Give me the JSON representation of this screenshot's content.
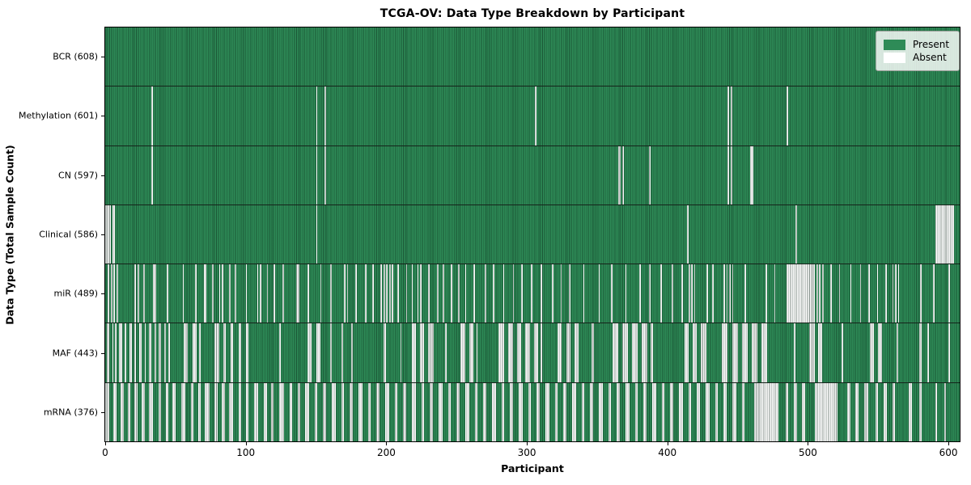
{
  "title": "TCGA-OV: Data Type Breakdown by Participant",
  "legend": {
    "present_label": "Present",
    "absent_label": "Absent"
  },
  "colors": {
    "present": "#2e8b57",
    "absent": "#fcfcfc",
    "bar_edge": "#15231a",
    "legend_bg": "rgba(255,255,255,0.82)"
  },
  "chart_data": {
    "type": "heatmap",
    "title": "TCGA-OV: Data Type Breakdown by Participant",
    "xlabel": "Participant",
    "ylabel": "Data Type (Total Sample Count)",
    "x_ticks": [
      0,
      100,
      200,
      300,
      400,
      500,
      600
    ],
    "n_participants": 608,
    "grid": false,
    "legend_position": "upper right",
    "legend_entries": [
      {
        "label": "Present",
        "color": "#2e8b57"
      },
      {
        "label": "Absent",
        "color": "#ffffff"
      }
    ],
    "rows": [
      {
        "name": "BCR",
        "label": "BCR (608)",
        "present_count": 608,
        "absent_count": 0,
        "absent_ranges": []
      },
      {
        "name": "Methylation",
        "label": "Methylation (601)",
        "present_count": 601,
        "absent_count": 7,
        "absent_ranges": [
          [
            33,
            33
          ],
          [
            150,
            150
          ],
          [
            156,
            156
          ],
          [
            306,
            306
          ],
          [
            443,
            443
          ],
          [
            445,
            445
          ],
          [
            485,
            485
          ]
        ]
      },
      {
        "name": "CN",
        "label": "CN (597)",
        "present_count": 597,
        "absent_count": 11,
        "absent_ranges": [
          [
            33,
            33
          ],
          [
            150,
            150
          ],
          [
            156,
            156
          ],
          [
            365,
            366
          ],
          [
            368,
            368
          ],
          [
            387,
            387
          ],
          [
            443,
            443
          ],
          [
            445,
            445
          ],
          [
            459,
            460
          ]
        ]
      },
      {
        "name": "Clinical",
        "label": "Clinical (586)",
        "present_count": 586,
        "absent_count": 22,
        "absent_ranges": [
          [
            0,
            3
          ],
          [
            5,
            6
          ],
          [
            150,
            150
          ],
          [
            414,
            414
          ],
          [
            491,
            491
          ],
          [
            591,
            603
          ]
        ]
      },
      {
        "name": "miR",
        "label": "miR (489)",
        "present_count": 489,
        "absent_count": 119,
        "absent_ranges": [
          [
            2,
            2
          ],
          [
            4,
            4
          ],
          [
            6,
            6
          ],
          [
            8,
            8
          ],
          [
            21,
            21
          ],
          [
            23,
            23
          ],
          [
            27,
            27
          ],
          [
            34,
            35
          ],
          [
            44,
            44
          ],
          [
            55,
            55
          ],
          [
            64,
            64
          ],
          [
            70,
            71
          ],
          [
            76,
            76
          ],
          [
            81,
            81
          ],
          [
            83,
            83
          ],
          [
            88,
            88
          ],
          [
            92,
            92
          ],
          [
            100,
            100
          ],
          [
            108,
            108
          ],
          [
            110,
            110
          ],
          [
            115,
            115
          ],
          [
            120,
            120
          ],
          [
            126,
            126
          ],
          [
            136,
            137
          ],
          [
            144,
            144
          ],
          [
            153,
            153
          ],
          [
            160,
            160
          ],
          [
            170,
            170
          ],
          [
            172,
            172
          ],
          [
            178,
            178
          ],
          [
            185,
            185
          ],
          [
            190,
            190
          ],
          [
            196,
            196
          ],
          [
            198,
            198
          ],
          [
            200,
            200
          ],
          [
            202,
            202
          ],
          [
            204,
            204
          ],
          [
            208,
            208
          ],
          [
            214,
            214
          ],
          [
            218,
            218
          ],
          [
            222,
            222
          ],
          [
            224,
            224
          ],
          [
            230,
            230
          ],
          [
            236,
            236
          ],
          [
            240,
            240
          ],
          [
            246,
            246
          ],
          [
            251,
            251
          ],
          [
            256,
            256
          ],
          [
            262,
            262
          ],
          [
            270,
            270
          ],
          [
            276,
            276
          ],
          [
            283,
            283
          ],
          [
            290,
            290
          ],
          [
            296,
            296
          ],
          [
            303,
            303
          ],
          [
            310,
            310
          ],
          [
            318,
            318
          ],
          [
            324,
            324
          ],
          [
            330,
            330
          ],
          [
            340,
            340
          ],
          [
            351,
            351
          ],
          [
            360,
            360
          ],
          [
            370,
            370
          ],
          [
            380,
            380
          ],
          [
            387,
            387
          ],
          [
            395,
            395
          ],
          [
            403,
            403
          ],
          [
            410,
            410
          ],
          [
            415,
            415
          ],
          [
            417,
            417
          ],
          [
            419,
            419
          ],
          [
            428,
            428
          ],
          [
            432,
            432
          ],
          [
            440,
            440
          ],
          [
            442,
            442
          ],
          [
            444,
            444
          ],
          [
            446,
            446
          ],
          [
            455,
            455
          ],
          [
            470,
            470
          ],
          [
            476,
            476
          ],
          [
            485,
            504
          ],
          [
            506,
            506
          ],
          [
            508,
            508
          ],
          [
            510,
            510
          ],
          [
            516,
            516
          ],
          [
            522,
            522
          ],
          [
            530,
            530
          ],
          [
            537,
            537
          ],
          [
            543,
            543
          ],
          [
            549,
            549
          ],
          [
            555,
            555
          ],
          [
            560,
            560
          ],
          [
            562,
            562
          ],
          [
            564,
            564
          ],
          [
            580,
            580
          ],
          [
            589,
            589
          ],
          [
            600,
            600
          ]
        ]
      },
      {
        "name": "MAF",
        "label": "MAF (443)",
        "present_count": 443,
        "absent_count": 165,
        "absent_ranges": [
          [
            1,
            2
          ],
          [
            5,
            5
          ],
          [
            7,
            7
          ],
          [
            10,
            11
          ],
          [
            14,
            14
          ],
          [
            17,
            18
          ],
          [
            21,
            21
          ],
          [
            24,
            25
          ],
          [
            28,
            28
          ],
          [
            31,
            32
          ],
          [
            35,
            35
          ],
          [
            38,
            39
          ],
          [
            42,
            42
          ],
          [
            45,
            45
          ],
          [
            56,
            58
          ],
          [
            62,
            64
          ],
          [
            67,
            67
          ],
          [
            78,
            80
          ],
          [
            84,
            85
          ],
          [
            89,
            90
          ],
          [
            95,
            96
          ],
          [
            100,
            101
          ],
          [
            124,
            124
          ],
          [
            144,
            146
          ],
          [
            150,
            152
          ],
          [
            160,
            160
          ],
          [
            168,
            168
          ],
          [
            175,
            175
          ],
          [
            198,
            199
          ],
          [
            210,
            210
          ],
          [
            218,
            220
          ],
          [
            224,
            226
          ],
          [
            230,
            233
          ],
          [
            242,
            242
          ],
          [
            253,
            255
          ],
          [
            259,
            261
          ],
          [
            264,
            264
          ],
          [
            280,
            283
          ],
          [
            287,
            289
          ],
          [
            293,
            295
          ],
          [
            299,
            301
          ],
          [
            305,
            307
          ],
          [
            310,
            310
          ],
          [
            322,
            324
          ],
          [
            328,
            330
          ],
          [
            334,
            336
          ],
          [
            346,
            347
          ],
          [
            361,
            364
          ],
          [
            368,
            371
          ],
          [
            375,
            378
          ],
          [
            382,
            385
          ],
          [
            388,
            389
          ],
          [
            412,
            414
          ],
          [
            418,
            420
          ],
          [
            424,
            427
          ],
          [
            439,
            442
          ],
          [
            446,
            449
          ],
          [
            453,
            456
          ],
          [
            460,
            463
          ],
          [
            467,
            470
          ],
          [
            490,
            490
          ],
          [
            501,
            504
          ],
          [
            507,
            509
          ],
          [
            524,
            524
          ],
          [
            544,
            546
          ],
          [
            550,
            552
          ],
          [
            563,
            563
          ],
          [
            579,
            580
          ],
          [
            585,
            585
          ],
          [
            600,
            600
          ]
        ]
      },
      {
        "name": "mRNA",
        "label": "mRNA (376)",
        "present_count": 376,
        "absent_count": 232,
        "absent_ranges": [
          [
            0,
            2
          ],
          [
            6,
            7
          ],
          [
            11,
            12
          ],
          [
            16,
            17
          ],
          [
            21,
            22
          ],
          [
            26,
            27
          ],
          [
            31,
            33
          ],
          [
            38,
            39
          ],
          [
            43,
            44
          ],
          [
            48,
            49
          ],
          [
            54,
            56
          ],
          [
            61,
            62
          ],
          [
            66,
            67
          ],
          [
            71,
            73
          ],
          [
            78,
            79
          ],
          [
            83,
            84
          ],
          [
            88,
            90
          ],
          [
            95,
            96
          ],
          [
            100,
            101
          ],
          [
            106,
            108
          ],
          [
            113,
            114
          ],
          [
            118,
            119
          ],
          [
            124,
            126
          ],
          [
            131,
            132
          ],
          [
            137,
            138
          ],
          [
            142,
            144
          ],
          [
            149,
            150
          ],
          [
            155,
            156
          ],
          [
            161,
            163
          ],
          [
            168,
            169
          ],
          [
            174,
            175
          ],
          [
            180,
            182
          ],
          [
            187,
            188
          ],
          [
            193,
            194
          ],
          [
            199,
            201
          ],
          [
            206,
            207
          ],
          [
            212,
            213
          ],
          [
            218,
            220
          ],
          [
            225,
            226
          ],
          [
            231,
            232
          ],
          [
            237,
            239
          ],
          [
            244,
            245
          ],
          [
            250,
            251
          ],
          [
            256,
            258
          ],
          [
            263,
            264
          ],
          [
            269,
            270
          ],
          [
            275,
            277
          ],
          [
            282,
            283
          ],
          [
            288,
            289
          ],
          [
            294,
            296
          ],
          [
            301,
            302
          ],
          [
            307,
            308
          ],
          [
            313,
            315
          ],
          [
            320,
            321
          ],
          [
            326,
            327
          ],
          [
            332,
            334
          ],
          [
            339,
            340
          ],
          [
            345,
            346
          ],
          [
            351,
            353
          ],
          [
            358,
            359
          ],
          [
            364,
            365
          ],
          [
            370,
            372
          ],
          [
            377,
            378
          ],
          [
            383,
            384
          ],
          [
            389,
            391
          ],
          [
            396,
            397
          ],
          [
            402,
            403
          ],
          [
            408,
            410
          ],
          [
            415,
            416
          ],
          [
            421,
            422
          ],
          [
            427,
            429
          ],
          [
            434,
            435
          ],
          [
            440,
            441
          ],
          [
            446,
            448
          ],
          [
            453,
            454
          ],
          [
            462,
            478
          ],
          [
            484,
            485
          ],
          [
            490,
            491
          ],
          [
            496,
            497
          ],
          [
            505,
            520
          ],
          [
            528,
            529
          ],
          [
            534,
            535
          ],
          [
            540,
            542
          ],
          [
            548,
            549
          ],
          [
            554,
            555
          ],
          [
            560,
            561
          ],
          [
            572,
            573
          ],
          [
            579,
            580
          ],
          [
            591,
            591
          ],
          [
            597,
            597
          ]
        ]
      }
    ]
  }
}
